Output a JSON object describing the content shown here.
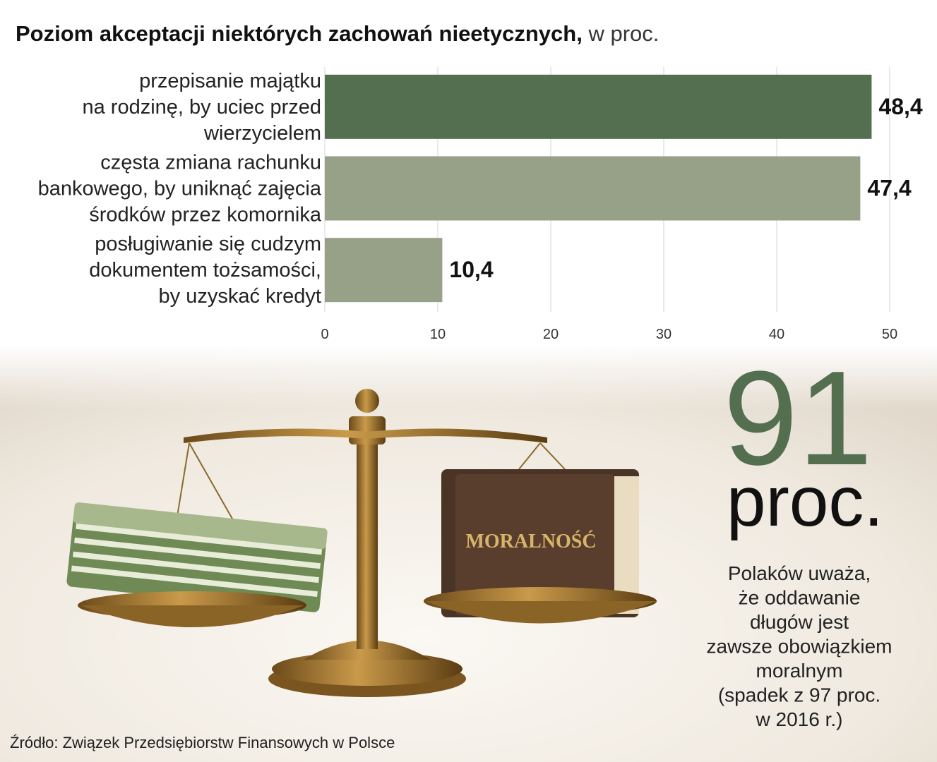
{
  "chart_data": {
    "type": "hbar",
    "title": "Poziom akceptacji niektórych zachowań nieetycznych,",
    "subtitle": "w proc.",
    "categories": [
      [
        "przepisanie majątku",
        "na rodzinę, by uciec przed",
        "wierzycielem"
      ],
      [
        "częsta zmiana rachunku",
        "bankowego, by uniknąć zajęcia",
        "środków przez komornika"
      ],
      [
        "posługiwanie się cudzym",
        "dokumentem tożsamości,",
        "by uzyskać kredyt"
      ]
    ],
    "values": [
      48.4,
      47.4,
      10.4
    ],
    "value_labels": [
      "48,4",
      "47,4",
      "10,4"
    ],
    "colors": [
      "#546e50",
      "#96a188",
      "#96a188"
    ],
    "xlim": [
      0,
      50
    ],
    "xticks": [
      0,
      10,
      20,
      30,
      40,
      50
    ],
    "grid": true
  },
  "highlight": {
    "number": "91",
    "unit": "proc.",
    "text": [
      "Polaków uważa,",
      "że oddawanie",
      "długów jest",
      "zawsze obowiązkiem",
      "moralnym",
      "(spadek z 97 proc.",
      "w 2016 r.)"
    ]
  },
  "illustration": {
    "book_title": "MORALNOŚĆ"
  },
  "source": "Źródło: Związek Przedsiębiorstw Finansowych w Polsce"
}
